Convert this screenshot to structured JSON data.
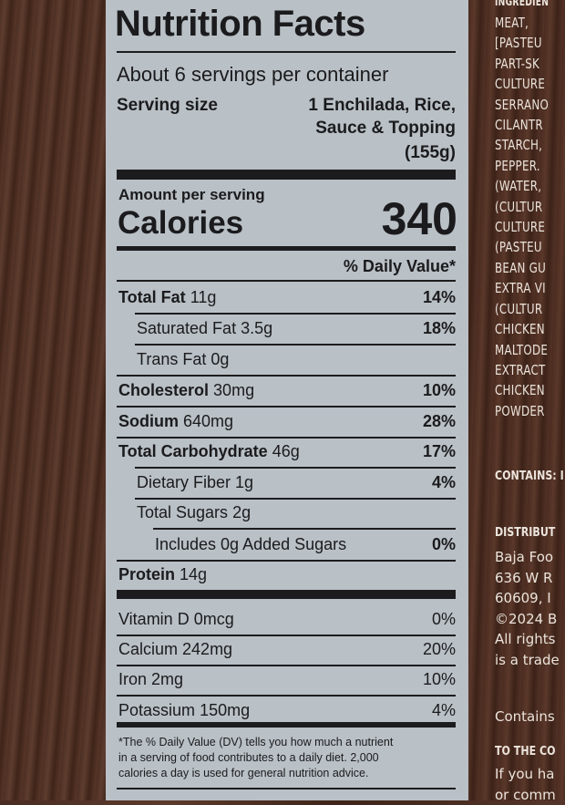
{
  "nutrition_facts": {
    "title": "Nutrition Facts",
    "servings_per_container": "About 6 servings per container",
    "serving_size_label": "Serving size",
    "serving_size_line1": "1 Enchilada, Rice,",
    "serving_size_line2": "Sauce & Topping",
    "serving_size_line3": "(155g)",
    "amount_per_serving": "Amount per serving",
    "calories_label": "Calories",
    "calories_value": "340",
    "daily_value_header": "% Daily Value*",
    "nutrients": [
      {
        "name": "Total Fat",
        "amount": "11g",
        "dv": "14%"
      },
      {
        "name": "Saturated Fat",
        "amount": "3.5g",
        "dv": "18%"
      },
      {
        "name": "Trans Fat",
        "amount": "0g",
        "dv": ""
      },
      {
        "name": "Cholesterol",
        "amount": "30mg",
        "dv": "10%"
      },
      {
        "name": "Sodium",
        "amount": "640mg",
        "dv": "28%"
      },
      {
        "name": "Total Carbohydrate",
        "amount": "46g",
        "dv": "17%"
      },
      {
        "name": "Dietary Fiber",
        "amount": "1g",
        "dv": "4%"
      },
      {
        "name": "Total Sugars",
        "amount": "2g",
        "dv": ""
      },
      {
        "name": "Includes 0g Added Sugars",
        "amount": "",
        "dv": "0%"
      },
      {
        "name": "Protein",
        "amount": "14g",
        "dv": ""
      }
    ],
    "vitamins": [
      {
        "name": "Vitamin D",
        "amount": "0mcg",
        "dv": "0%"
      },
      {
        "name": "Calcium",
        "amount": "242mg",
        "dv": "20%"
      },
      {
        "name": "Iron",
        "amount": "2mg",
        "dv": "10%"
      },
      {
        "name": "Potassium",
        "amount": "150mg",
        "dv": "4%"
      }
    ],
    "footnote_line1": "*The % Daily Value (DV) tells you how much a nutrient",
    "footnote_line2": "in a serving of food contributes to a daily diet. 2,000",
    "footnote_line3": "calories a day is used for general nutrition advice."
  },
  "ingredients_fragment": [
    "INGREDIEN",
    "MEAT,",
    "[PASTEU",
    "PART-SK",
    "CULTURE",
    "SERRANO",
    "CILANTR",
    "STARCH,",
    "PEPPER.",
    "(WATER,",
    "(CULTUR",
    "CULTURE",
    "(PASTEU",
    "BEAN GU",
    "EXTRA VI",
    "(CULTUR",
    "CHICKEN",
    "MALTODE",
    "EXTRACT",
    "CHICKEN",
    "POWDER"
  ],
  "contains_fragment": "CONTAINS: I",
  "distributor": {
    "heading": "DISTRIBUT",
    "lines": [
      "Baja Foo",
      "636 W R",
      "60609, I",
      "©2024 B",
      "All rights",
      "is a trade"
    ],
    "contains": "Contains"
  },
  "consumer": {
    "heading": "TO THE CO",
    "lines": [
      "If you ha",
      "or comm"
    ]
  }
}
